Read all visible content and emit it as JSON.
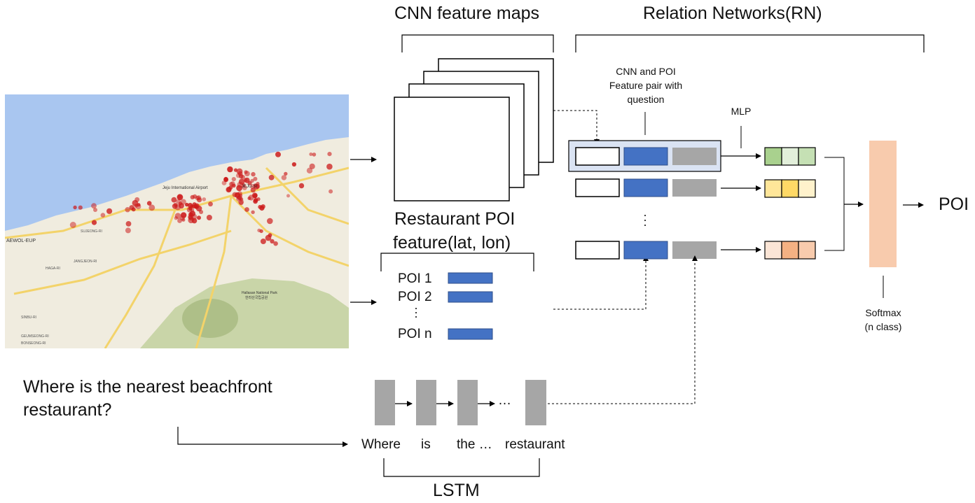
{
  "headings": {
    "cnn": "CNN feature maps",
    "rn": "Relation Networks(RN)",
    "poi_feature_line1": "Restaurant POI",
    "poi_feature_line2": "feature(lat, lon)",
    "lstm": "LSTM",
    "output": "POI"
  },
  "annotations": {
    "pair_line1": "CNN and POI",
    "pair_line2": "Feature pair with",
    "pair_line3": "question",
    "mlp": "MLP",
    "softmax_line1": "Softmax",
    "softmax_line2": "(n class)"
  },
  "poi_list": [
    "POI 1",
    "POI 2",
    "POI n"
  ],
  "question": {
    "line1": "Where is the nearest beachfront",
    "line2": "restaurant?"
  },
  "lstm_tokens": [
    "Where",
    "is",
    "the …",
    "restaurant"
  ],
  "lstm_ellipsis": "…",
  "map_labels": {
    "airport": "Jeju International Airport",
    "city": "JEJU-SI",
    "west": "AEWOL-EUP",
    "park": "Hallasan National Park",
    "park_kr": "한라산국립공원",
    "haga": "HAGA-RI",
    "sujeong": "SUJEONG-RI",
    "jangjeon": "JANGJEON-RI",
    "sinbu": "SINBU-RI",
    "bonseong": "BONSEONG-RI",
    "geumseong": "GEUMSEONG-RI"
  },
  "colors": {
    "sea": "#a9c6f0",
    "land": "#f0ecdf",
    "mountain": "#c9d5a8",
    "road": "#f3d36a",
    "poi_marker": "#cc1b1b",
    "feature_blue": "#4472c4",
    "feature_gray": "#a6a6a6",
    "pair_highlight": "#dae3f3",
    "lstm_cell": "#a6a6a6",
    "softmax_bar": "#f8cbad",
    "mlp_row1": [
      "#a9d18e",
      "#e2efda",
      "#c5e0b4"
    ],
    "mlp_row2": [
      "#ffe699",
      "#ffd966",
      "#fff2cc"
    ],
    "mlp_row3": [
      "#fbe5d6",
      "#f4b183",
      "#f8cbad"
    ]
  }
}
